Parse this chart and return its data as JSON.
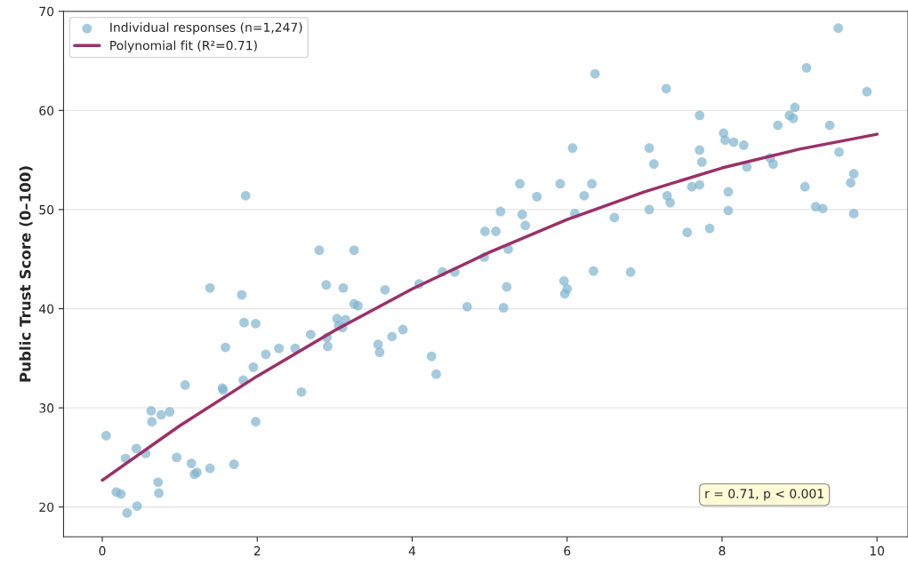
{
  "chart_data": {
    "type": "scatter",
    "ylabel": "Public Trust Score (0–100)",
    "xlim": [
      -0.5,
      10.4
    ],
    "ylim": [
      17,
      70
    ],
    "xticks": [
      0,
      2,
      4,
      6,
      8,
      10
    ],
    "yticks": [
      20,
      30,
      40,
      50,
      60,
      70
    ],
    "grid": "y",
    "legend": "top left",
    "annotations": [
      "r = 0.71, p < 0.001"
    ],
    "series": [
      {
        "name": "Individual responses (n=1,247)",
        "color": "#7fb3cf",
        "marker": "circle",
        "x": [
          0.05,
          0.18,
          0.24,
          0.3,
          0.32,
          0.44,
          0.45,
          0.56,
          0.63,
          0.64,
          0.72,
          0.73,
          0.76,
          0.87,
          0.96,
          1.07,
          1.15,
          1.19,
          1.22,
          1.39,
          1.39,
          1.55,
          1.56,
          1.59,
          1.7,
          1.8,
          1.82,
          1.83,
          1.85,
          1.95,
          1.98,
          1.98,
          2.11,
          2.28,
          2.49,
          2.57,
          2.69,
          2.8,
          2.89,
          2.9,
          2.91,
          3.03,
          3.05,
          3.1,
          3.11,
          3.14,
          3.25,
          3.25,
          3.3,
          3.56,
          3.58,
          3.65,
          3.74,
          3.88,
          4.09,
          4.25,
          4.31,
          4.39,
          4.55,
          4.71,
          4.93,
          4.94,
          5.08,
          5.14,
          5.18,
          5.22,
          5.24,
          5.39,
          5.42,
          5.46,
          5.61,
          5.91,
          5.96,
          5.97,
          6.0,
          6.07,
          6.1,
          6.22,
          6.32,
          6.36,
          6.34,
          6.61,
          6.82,
          7.06,
          7.06,
          7.12,
          7.28,
          7.29,
          7.33,
          7.55,
          7.61,
          7.71,
          7.71,
          7.71,
          7.74,
          7.84,
          8.02,
          8.04,
          8.08,
          8.08,
          8.15,
          8.28,
          8.32,
          8.62,
          8.66,
          8.72,
          8.87,
          8.92,
          8.94,
          9.07,
          9.09,
          9.21,
          9.3,
          9.39,
          9.5,
          9.51,
          9.66,
          9.7,
          9.7,
          9.87
        ],
        "values": [
          27.2,
          21.5,
          21.3,
          24.9,
          19.4,
          25.9,
          20.1,
          25.4,
          29.7,
          28.6,
          22.5,
          21.4,
          29.3,
          29.6,
          25.0,
          32.3,
          24.4,
          23.3,
          23.5,
          23.9,
          42.1,
          32.0,
          31.8,
          36.1,
          24.3,
          41.4,
          32.8,
          38.6,
          51.4,
          34.1,
          38.5,
          28.6,
          35.4,
          36.0,
          36.0,
          31.6,
          37.4,
          45.9,
          42.4,
          37.1,
          36.2,
          39.0,
          38.3,
          38.1,
          42.1,
          38.9,
          45.9,
          40.5,
          40.3,
          36.4,
          35.6,
          41.9,
          37.2,
          37.9,
          42.5,
          35.2,
          33.4,
          43.7,
          43.7,
          40.2,
          45.2,
          47.8,
          47.8,
          49.8,
          40.1,
          42.2,
          46.0,
          52.6,
          49.5,
          48.4,
          51.3,
          52.6,
          42.8,
          41.5,
          42.0,
          56.2,
          49.6,
          51.4,
          52.6,
          63.7,
          43.8,
          49.2,
          43.7,
          56.2,
          50.0,
          54.6,
          62.2,
          51.4,
          50.7,
          47.7,
          52.3,
          59.5,
          56.0,
          52.5,
          54.8,
          48.1,
          57.7,
          57.0,
          51.8,
          49.9,
          56.8,
          56.5,
          54.3,
          55.2,
          54.6,
          58.5,
          59.5,
          59.2,
          60.3,
          52.3,
          64.3,
          50.3,
          50.1,
          58.5,
          68.3,
          55.8,
          52.7,
          53.6,
          49.6,
          61.9
        ]
      },
      {
        "name": "Polynomial fit (R²=0.71)",
        "type": "line",
        "color": "#9b3068",
        "line_style": "solid",
        "x": [
          0,
          1,
          2,
          3,
          4,
          5,
          6,
          7,
          8,
          9,
          10
        ],
        "values": [
          22.7,
          28.2,
          33.2,
          37.8,
          42.0,
          45.7,
          49.0,
          51.8,
          54.2,
          56.1,
          57.6
        ]
      }
    ]
  }
}
